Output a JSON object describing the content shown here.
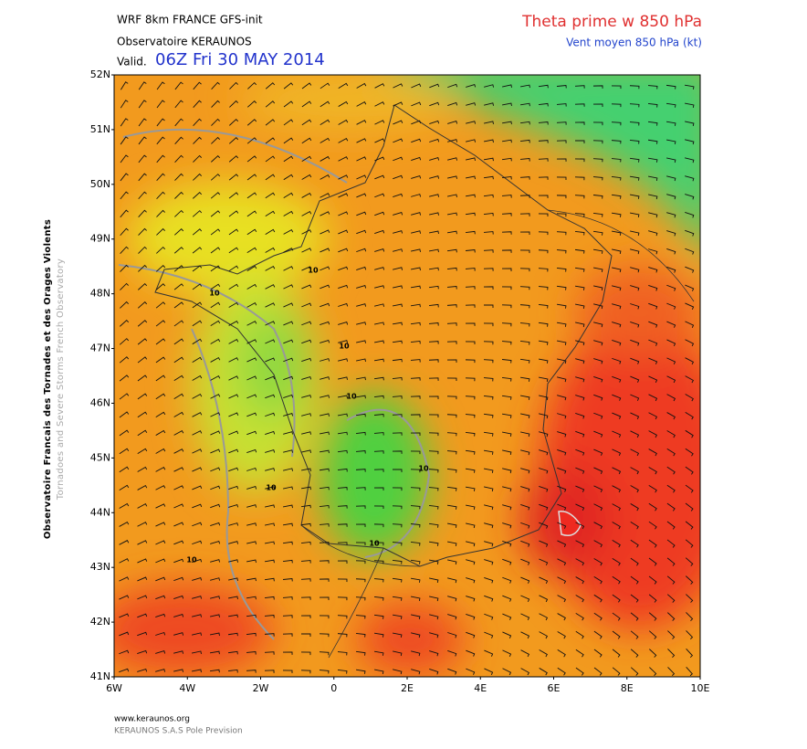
{
  "header": {
    "model": "WRF 8km FRANCE  GFS-init",
    "source": "Observatoire KERAUNOS",
    "valid_prefix": "Valid.",
    "valid_time": "06Z Fri 30 MAY 2014",
    "title": "Theta prime w 850 hPa",
    "subtitle": "Vent moyen 850 hPa (kt)"
  },
  "map": {
    "lat_labels": [
      "52N",
      "51N",
      "50N",
      "49N",
      "48N",
      "47N",
      "46N",
      "45N",
      "44N",
      "43N",
      "42N",
      "41N"
    ],
    "lon_labels": [
      "6W",
      "4W",
      "2W",
      "0",
      "2E",
      "4E",
      "6E",
      "8E",
      "10E"
    ],
    "contour_labels": [
      "10",
      "10",
      "10",
      "10",
      "10",
      "10",
      "10",
      "10"
    ]
  },
  "side": {
    "line1": "Observatoire Francais des Tornades et des Orages Violents",
    "line2": "Tornadoes and Severe Storms French Observatory"
  },
  "footer": {
    "url": "www.keraunos.org",
    "credit": "KERAUNOS S.A.S Pole Prevision"
  }
}
